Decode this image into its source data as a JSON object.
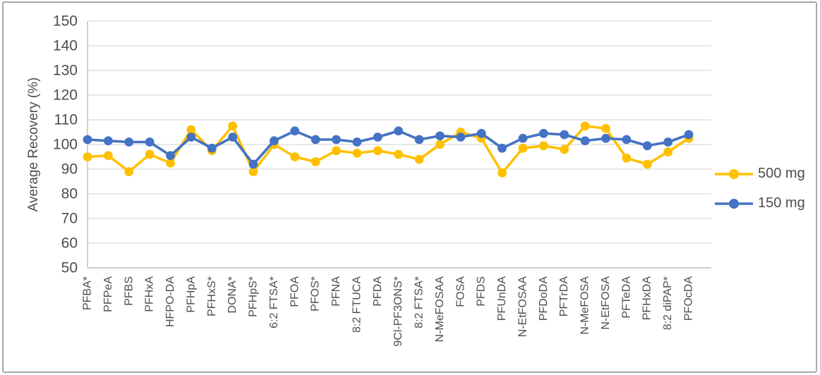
{
  "chart_data": {
    "type": "line",
    "title": "",
    "xlabel": "",
    "ylabel": "Average Recovery (%)",
    "ylim": [
      50,
      150
    ],
    "ytick_step": 10,
    "grid": true,
    "legend_position": "right",
    "categories": [
      "PFBA*",
      "PFPeA",
      "PFBS",
      "PFHxA",
      "HFPO-DA",
      "PFHpA",
      "PFHxS*",
      "DONA*",
      "PFHpS*",
      "6:2 FTSA*",
      "PFOA",
      "PFOS*",
      "PFNA",
      "8:2 FTUCA",
      "PFDA",
      "9Cl-PF3ONS*",
      "8:2 FTSA*",
      "N-MeFOSAA",
      "FOSA",
      "PFDS",
      "PFUnDA",
      "N-EtFOSAA",
      "PFDoDA",
      "PFTrDA",
      "N-MeFOSA",
      "N-EtFOSA",
      "PFTeDA",
      "PFHxDA",
      "8:2 diPAP*",
      "PFOcDA"
    ],
    "series": [
      {
        "name": "500 mg",
        "color": "#FFC000",
        "values": [
          95,
          95.5,
          89,
          96,
          92.5,
          106,
          97.5,
          107.5,
          89,
          100,
          95,
          93,
          97.5,
          96.5,
          97.5,
          96,
          94,
          100,
          105,
          102.5,
          88.5,
          98.5,
          99.5,
          98,
          107.5,
          106.5,
          94.5,
          92,
          97,
          102.5
        ]
      },
      {
        "name": "150 mg",
        "color": "#4472C4",
        "values": [
          102,
          101.5,
          101,
          101,
          95.5,
          103,
          98.5,
          103,
          92,
          101.5,
          105.5,
          102,
          102,
          101,
          103,
          105.5,
          102,
          103.5,
          103,
          104.5,
          98.5,
          102.5,
          104.5,
          104,
          101.5,
          102.5,
          102,
          99.5,
          101,
          104
        ]
      }
    ]
  },
  "colors": {
    "gridline": "#d9d9d9",
    "axis_line": "#c0c0c0",
    "text": "#4d4d4d",
    "frame_border": "#a8a8a8"
  }
}
